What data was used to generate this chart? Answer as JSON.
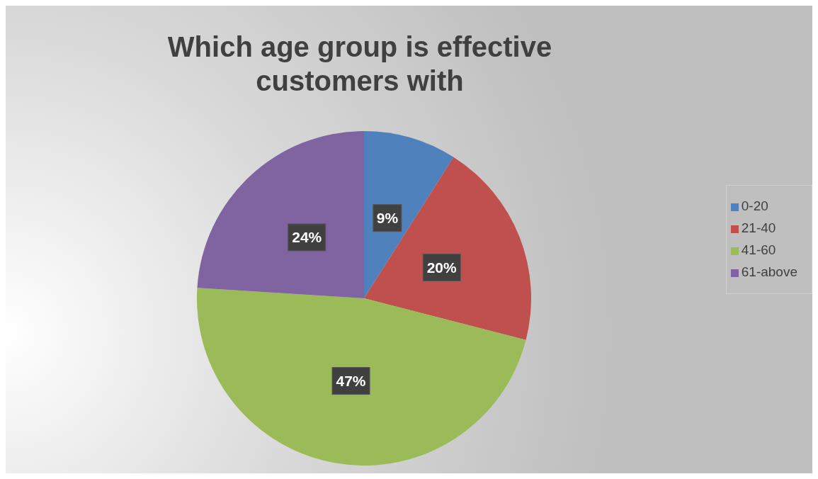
{
  "chart_data": {
    "type": "pie",
    "title": "Which age group is effective customers with",
    "categories": [
      "0-20",
      "21-40",
      "41-60",
      "61-above"
    ],
    "values": [
      9,
      20,
      47,
      24
    ],
    "colors": [
      "#4f81bd",
      "#c0504d",
      "#9bbb59",
      "#8064a2"
    ],
    "value_labels": [
      "9%",
      "20%",
      "47%",
      "24%"
    ],
    "legend": "right"
  }
}
